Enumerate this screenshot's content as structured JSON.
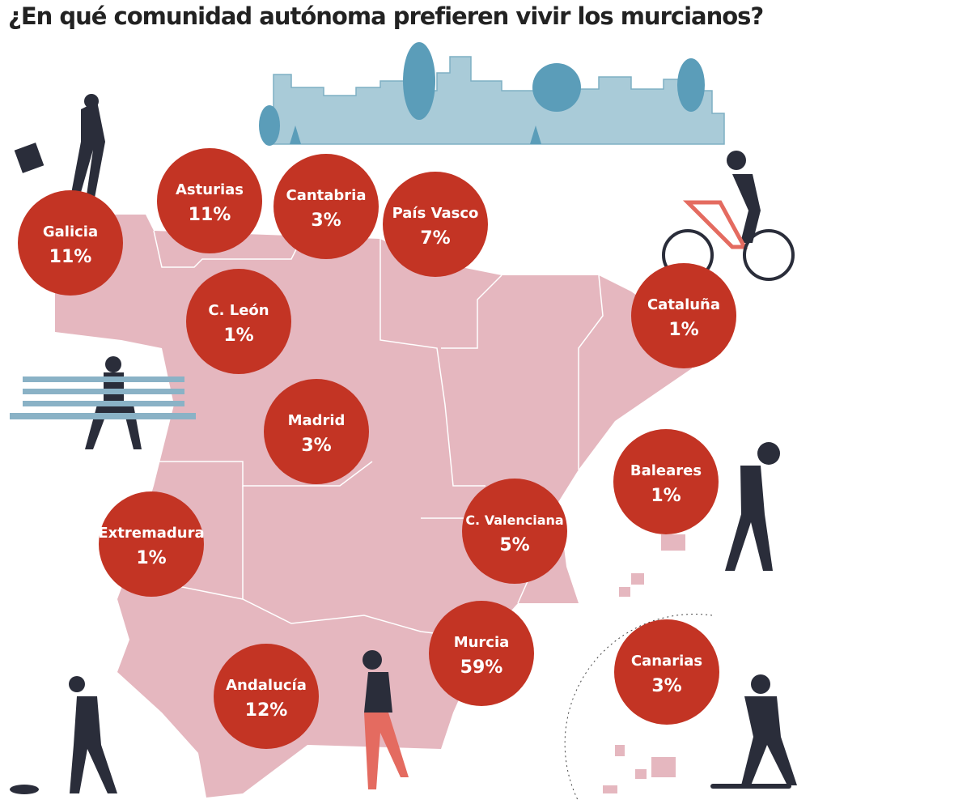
{
  "title": "¿En qué comunidad autónoma prefieren vivir los murcianos?",
  "regions": [
    {
      "name": "Galicia",
      "label": "11%"
    },
    {
      "name": "Asturias",
      "label": "11%"
    },
    {
      "name": "Cantabria",
      "label": "3%"
    },
    {
      "name": "País Vasco",
      "label": "7%"
    },
    {
      "name": "C. León",
      "label": "1%"
    },
    {
      "name": "Cataluña",
      "label": "1%"
    },
    {
      "name": "Madrid",
      "label": "3%"
    },
    {
      "name": "Baleares",
      "label": "1%"
    },
    {
      "name": "Extremadura",
      "label": "1%"
    },
    {
      "name": "C. Valenciana",
      "label": "5%"
    },
    {
      "name": "Murcia",
      "label": "59%"
    },
    {
      "name": "Canarias",
      "label": "3%"
    },
    {
      "name": "Andalucía",
      "label": "12%"
    }
  ]
}
